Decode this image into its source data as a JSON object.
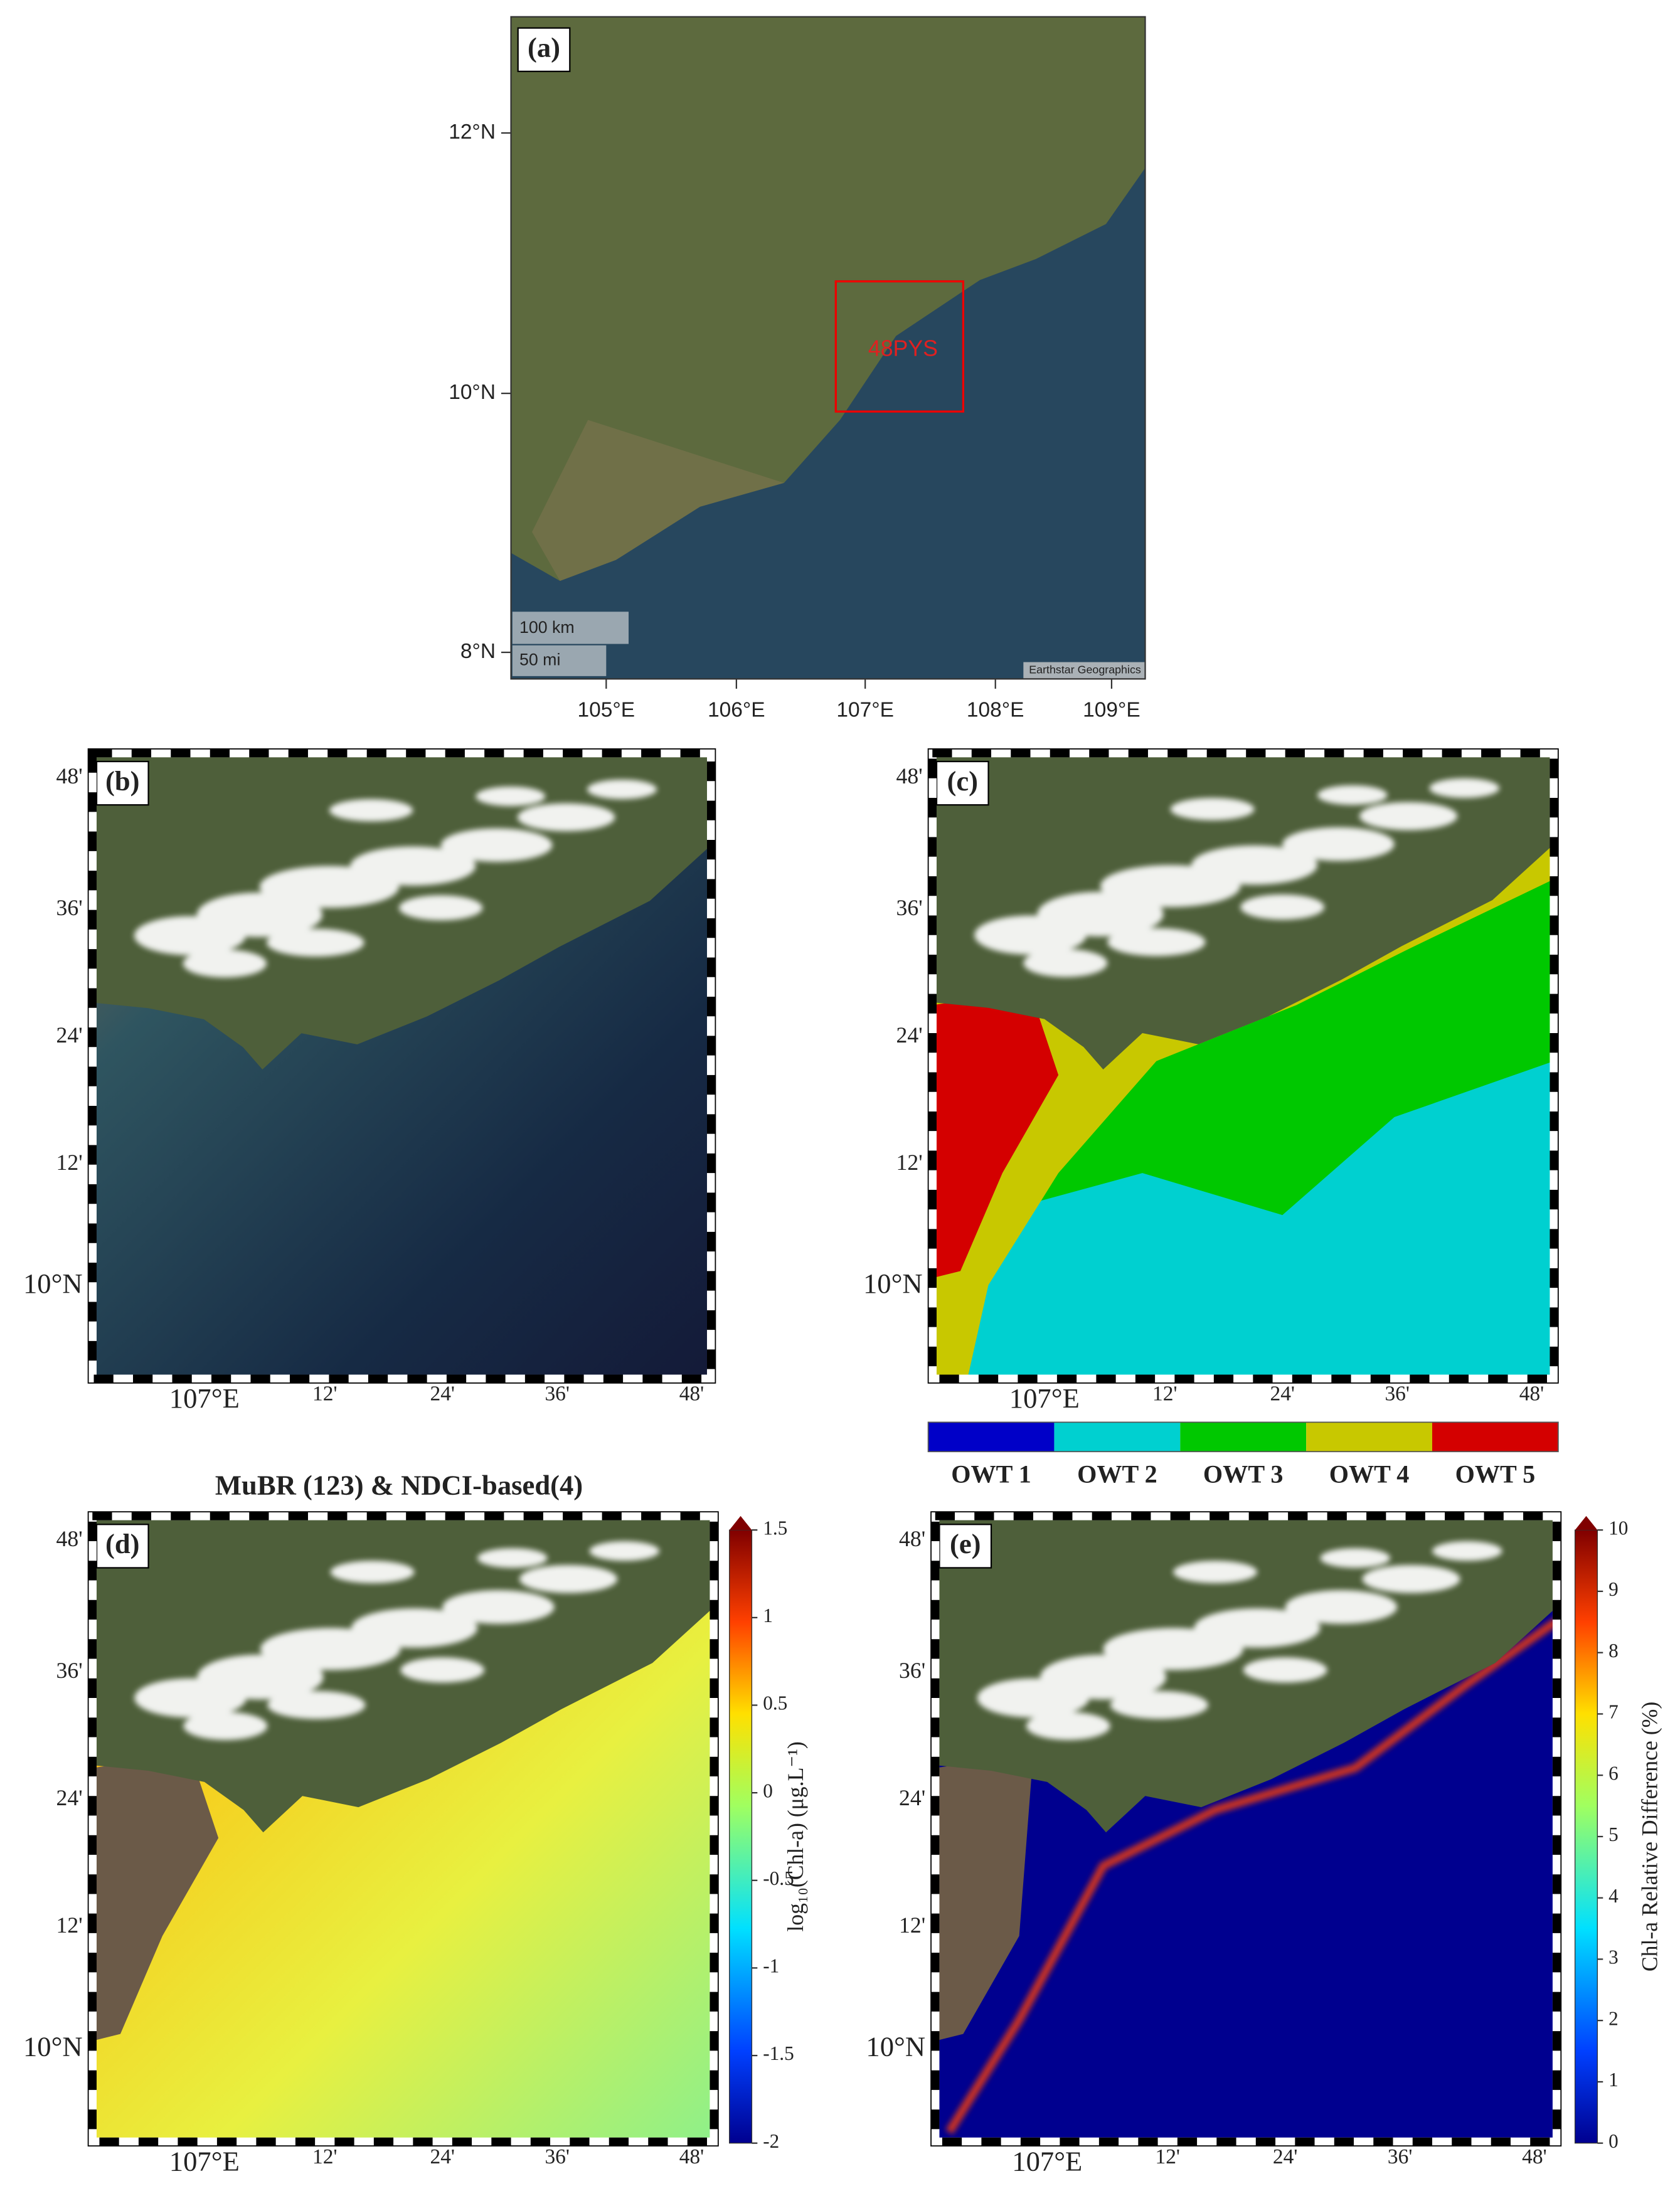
{
  "panels": [
    {
      "label": "(a)",
      "y_labels": [
        "12°N",
        "10°N",
        "8°N"
      ],
      "x_labels": [
        "105°E",
        "106°E",
        "107°E",
        "108°E",
        "109°E"
      ],
      "box_label": "48PYS",
      "scale_bar": [
        "100 km",
        "50 mi"
      ],
      "attribution": "Earthstar Geographics"
    },
    {
      "label": "(b)",
      "y_labels": [
        "48'",
        "36'",
        "24'",
        "12'",
        "10°N"
      ],
      "x_labels": [
        "107°E",
        "12'",
        "24'",
        "36'",
        "48'"
      ]
    },
    {
      "label": "(c)",
      "y_labels": [
        "48'",
        "36'",
        "24'",
        "12'",
        "10°N"
      ],
      "x_labels": [
        "107°E",
        "12'",
        "24'",
        "36'",
        "48'"
      ],
      "legend": [
        {
          "name": "OWT 1",
          "color": "#0000c8"
        },
        {
          "name": "OWT 2",
          "color": "#00d0d0"
        },
        {
          "name": "OWT 3",
          "color": "#00c800"
        },
        {
          "name": "OWT 4",
          "color": "#c8c800"
        },
        {
          "name": "OWT 5",
          "color": "#d40000"
        }
      ]
    },
    {
      "label": "(d)",
      "title": "MuBR (123) & NDCI-based(4)",
      "y_labels": [
        "48'",
        "36'",
        "24'",
        "12'",
        "10°N"
      ],
      "x_labels": [
        "107°E",
        "12'",
        "24'",
        "36'",
        "48'"
      ],
      "colorbar": {
        "label": "log₁₀(Chl-a) (μg.L⁻¹)",
        "lim": [
          -2,
          1.5
        ],
        "ticks": [
          -2,
          -1.5,
          -1,
          -0.5,
          0,
          0.5,
          1,
          1.5
        ]
      }
    },
    {
      "label": "(e)",
      "y_labels": [
        "48'",
        "36'",
        "24'",
        "12'",
        "10°N"
      ],
      "x_labels": [
        "107°E",
        "12'",
        "24'",
        "36'",
        "48'"
      ],
      "colorbar": {
        "label": "Chl-a Relative Difference (%)",
        "lim": [
          0,
          10
        ],
        "ticks": [
          0,
          1,
          2,
          3,
          4,
          5,
          6,
          7,
          8,
          9,
          10
        ]
      }
    }
  ]
}
